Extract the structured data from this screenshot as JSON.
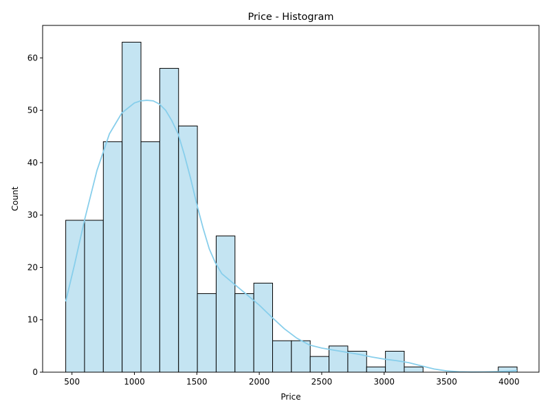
{
  "chart_data": {
    "type": "bar",
    "title": "Price - Histogram",
    "xlabel": "Price",
    "ylabel": "Count",
    "xlim": [
      265,
      4240
    ],
    "ylim": [
      0,
      66.2
    ],
    "x_ticks": [
      500,
      1000,
      1500,
      2000,
      2500,
      3000,
      3500,
      4000
    ],
    "y_ticks": [
      0,
      10,
      20,
      30,
      40,
      50,
      60
    ],
    "bin_edges": [
      450,
      600.6,
      751.2,
      901.8,
      1052.4,
      1203,
      1353.6,
      1504.2,
      1654.8,
      1805.4,
      1956,
      2106.6,
      2257.2,
      2407.8,
      2558.4,
      2709,
      2859.6,
      3010.2,
      3160.8,
      3311.4,
      3462,
      3612.6,
      3763.2,
      3913.8,
      4064.4
    ],
    "counts": [
      29,
      29,
      44,
      63,
      44,
      58,
      47,
      15,
      26,
      15,
      17,
      6,
      6,
      3,
      5,
      4,
      1,
      4,
      1,
      0,
      0,
      0,
      0,
      1
    ],
    "kde": {
      "x": [
        450,
        520,
        600,
        700,
        800,
        900,
        1000,
        1050,
        1100,
        1150,
        1200,
        1250,
        1300,
        1350,
        1400,
        1450,
        1500,
        1550,
        1600,
        1650,
        1700,
        1800,
        1900,
        2000,
        2100,
        2200,
        2300,
        2400,
        2500,
        2600,
        2700,
        2800,
        2900,
        3000,
        3100,
        3200,
        3300,
        3400,
        3500,
        3600,
        3700,
        3800,
        3900,
        4000,
        4064
      ],
      "y": [
        13.5,
        20.5,
        29,
        38.5,
        45.5,
        49.5,
        51.4,
        51.8,
        51.9,
        51.8,
        51.2,
        50,
        48,
        45.5,
        41.5,
        37,
        32,
        27.5,
        23.5,
        20.8,
        18.8,
        16.8,
        14.8,
        12.8,
        10.5,
        8.3,
        6.5,
        5.2,
        4.6,
        4.2,
        3.8,
        3.4,
        2.9,
        2.5,
        2.2,
        1.8,
        1.2,
        0.6,
        0.25,
        0.08,
        0.03,
        0.05,
        0.1,
        0.2,
        0.3
      ]
    },
    "colors": {
      "bar_fill": "#c4e4f2",
      "bar_edge": "#000000",
      "kde_line": "#87ceeb",
      "axis": "#000000",
      "background": "#ffffff"
    },
    "grid": false,
    "legend": "none"
  }
}
